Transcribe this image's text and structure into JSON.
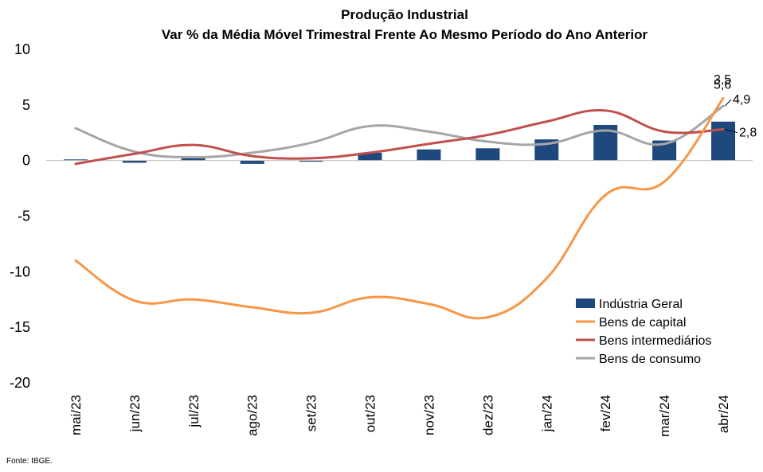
{
  "chart_data": {
    "type": "bar+line",
    "title": "Produção Industrial",
    "subtitle": "Var % da Média Móvel Trimestral Frente Ao Mesmo Período do Ano Anterior",
    "source": "Fonte: IBGE.",
    "categories": [
      "mai/23",
      "jun/23",
      "jul/23",
      "ago/23",
      "set/23",
      "out/23",
      "nov/23",
      "dez/23",
      "jan/24",
      "fev/24",
      "mar/24",
      "abr/24"
    ],
    "ylim": [
      -20,
      10
    ],
    "yticks": [
      10,
      5,
      0,
      -5,
      -10,
      -15,
      -20
    ],
    "legend_position": "bottom-right",
    "grid": false,
    "series": [
      {
        "name": "Indústria Geral",
        "kind": "bar",
        "color": "#1f497d",
        "values": [
          0.1,
          -0.2,
          0.2,
          -0.3,
          -0.1,
          0.7,
          1.0,
          1.1,
          1.9,
          3.2,
          1.8,
          3.5
        ]
      },
      {
        "name": "Bens de capital",
        "kind": "line",
        "color": "#f79646",
        "values": [
          -9.0,
          -12.6,
          -12.5,
          -13.2,
          -13.7,
          -12.3,
          -12.9,
          -14.1,
          -10.6,
          -3.1,
          -1.9,
          5.6
        ]
      },
      {
        "name": "Bens intermediários",
        "kind": "line",
        "color": "#c0504d",
        "values": [
          -0.3,
          0.6,
          1.4,
          0.4,
          0.2,
          0.7,
          1.5,
          2.3,
          3.5,
          4.5,
          2.6,
          2.8
        ]
      },
      {
        "name": "Bens de consumo",
        "kind": "line",
        "color": "#a6a6a6",
        "values": [
          2.9,
          0.8,
          0.3,
          0.7,
          1.6,
          3.1,
          2.6,
          1.7,
          1.5,
          2.7,
          1.5,
          4.9
        ]
      }
    ],
    "data_labels": [
      {
        "series": "Bens de capital",
        "index": 11,
        "text": "5,6"
      },
      {
        "series": "Bens de consumo",
        "index": 11,
        "text": "4,9"
      },
      {
        "series": "Indústria Geral",
        "index": 11,
        "text": "3,5"
      },
      {
        "series": "Bens intermediários",
        "index": 11,
        "text": "2,8"
      }
    ]
  }
}
